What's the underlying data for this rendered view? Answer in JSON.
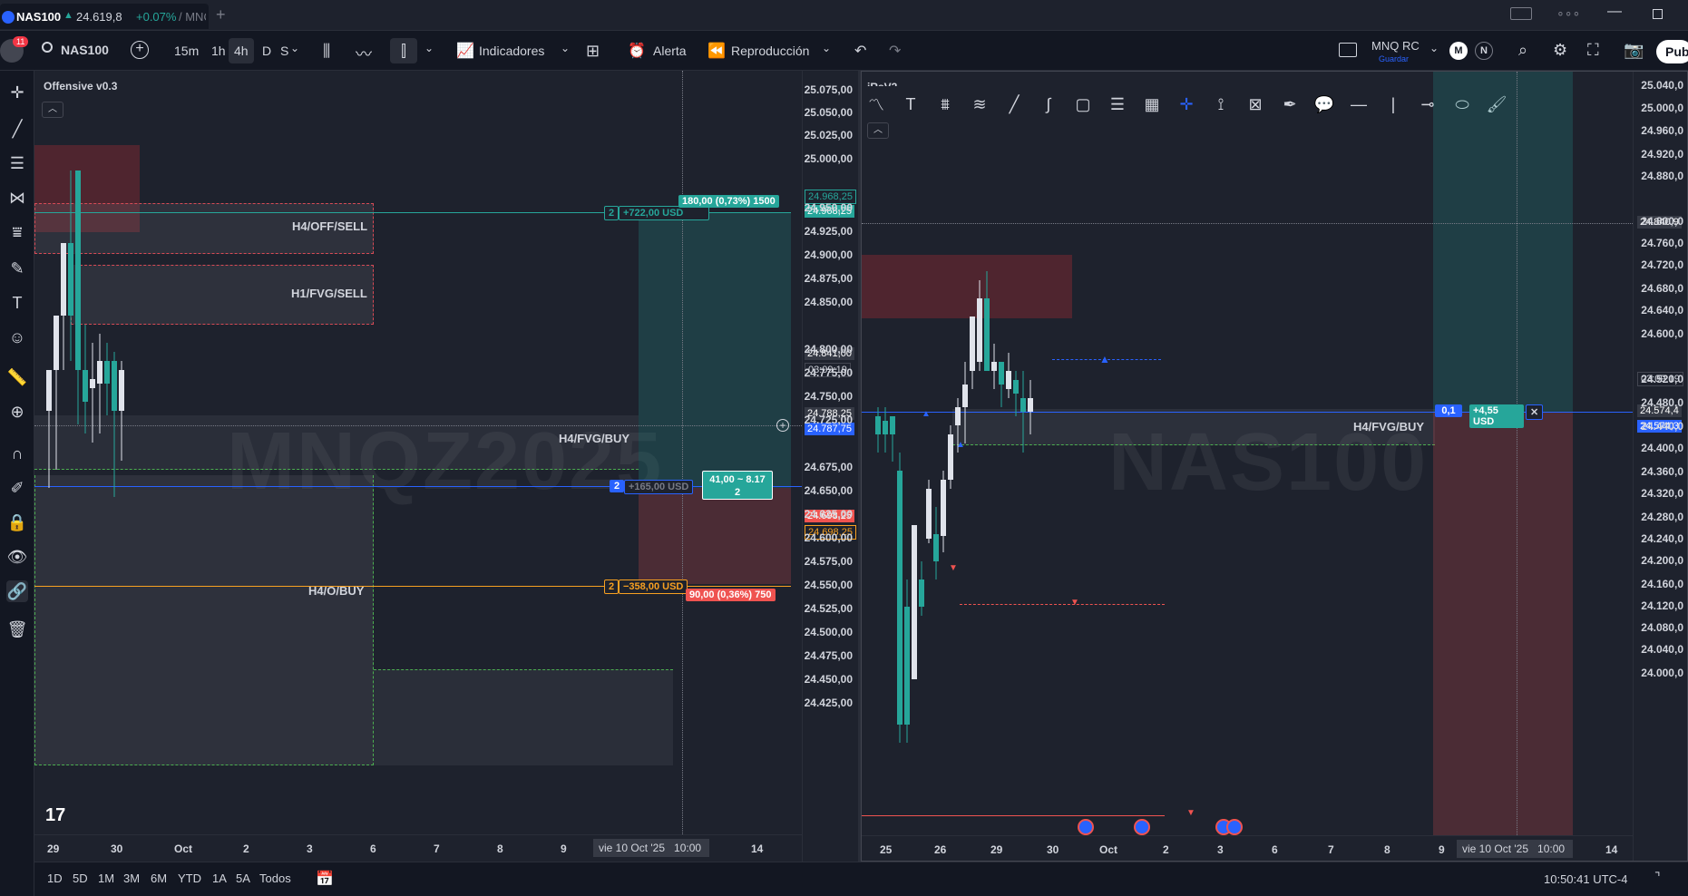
{
  "tab": {
    "symbol": "NAS100",
    "arrow": "▲",
    "price": "24.619,8",
    "change": "+0.07%",
    "extra": "/ MNQ",
    "notif": "11"
  },
  "toolbar": {
    "symbol": "NAS100",
    "intervals": [
      "15m",
      "1h",
      "4h",
      "D",
      "S"
    ],
    "active_interval": "4h",
    "indicators": "Indicadores",
    "alert": "Alerta",
    "replay": "Reproducción",
    "layout_name": "MNQ RC",
    "layout_sub": "Guardar",
    "avatar1": "M",
    "avatar2": "N",
    "publish": "Publ"
  },
  "left_chart": {
    "title": "Offensive v0.3",
    "watermark": "MNQZ2025",
    "prices": [
      "25.075,00",
      "25.050,00",
      "25.025,00",
      "25.000,00",
      "24.950,00",
      "24.925,00",
      "24.900,00",
      "24.875,00",
      "24.850,00",
      "24.800,00",
      "24.775,00",
      "24.750,00",
      "24.725,00",
      "24.675,00",
      "24.650,00",
      "24.625,00",
      "24.600,00",
      "24.575,00",
      "24.550,00",
      "24.525,00",
      "24.500,00",
      "24.475,00",
      "24.450,00",
      "24.425,00"
    ],
    "price_tags": {
      "tp1": "24.968,25",
      "tp2": "24.968,25",
      "cross": "24.841,00",
      "timer": "03:09:19",
      "last": "24.788,25",
      "entry": "24.787,75",
      "sl1": "24.698,25",
      "sl2": "24.698,25"
    },
    "time_labels": [
      "29",
      "30",
      "Oct",
      "2",
      "3",
      "6",
      "7",
      "8",
      "9",
      "14"
    ],
    "crosshair_time": "vie 10 Oct '25",
    "crosshair_hour": "10:00",
    "zones": {
      "off_sell": "H4/OFF/SELL",
      "fvg_sell": "H1/FVG/SELL",
      "fvg_buy": "H4/FVG/BUY",
      "o_buy": "H4/O/BUY"
    },
    "orders": {
      "tp_qty": "2",
      "tp_pnl": "+722,00 USD",
      "tp_info": "180,00 (0,73%) 1500",
      "entry_qty": "2",
      "entry_pnl": "+165,00 USD",
      "entry_info": "41,00 ~ 8.17",
      "entry_info2": "2",
      "sl_qty": "2",
      "sl_pnl": "−358,00 USD",
      "sl_info": "90,00 (0,36%) 750"
    },
    "tv_logo": "17"
  },
  "right_chart": {
    "title": "iRsV2",
    "watermark": "NAS100",
    "prices": [
      "25.040,0",
      "25.000,0",
      "24.960,0",
      "24.920,0",
      "24.880,0",
      "24.800,0",
      "24.760,0",
      "24.720,0",
      "24.680,0",
      "24.640,0",
      "24.600,0",
      "24.520,0",
      "24.480,0",
      "24.440,0",
      "24.400,0",
      "24.360,0",
      "24.320,0",
      "24.280,0",
      "24.240,0",
      "24.200,0",
      "24.160,0",
      "24.120,0",
      "24.080,0",
      "24.040,0",
      "24.000,0"
    ],
    "price_tags": {
      "cross": "24.840,9",
      "timer": "03:09:19",
      "last": "24.574,4",
      "entry": "24.574,3"
    },
    "time_labels": [
      "25",
      "26",
      "29",
      "30",
      "Oct",
      "2",
      "3",
      "6",
      "7",
      "8",
      "9",
      "14"
    ],
    "crosshair_time": "vie 10 Oct '25",
    "crosshair_hour": "10:00",
    "zone": "H4/FVG/BUY",
    "order": {
      "qty": "0,1",
      "pnl": "+4,55 USD"
    }
  },
  "bottom": {
    "ranges": [
      "1D",
      "5D",
      "1M",
      "3M",
      "6M",
      "YTD",
      "1A",
      "5A",
      "Todos"
    ],
    "clock": "10:50:41 UTC-4"
  },
  "colors": {
    "up": "#26a69a",
    "down": "#ef5350",
    "accent": "#2962ff",
    "bg": "#1e222d"
  }
}
